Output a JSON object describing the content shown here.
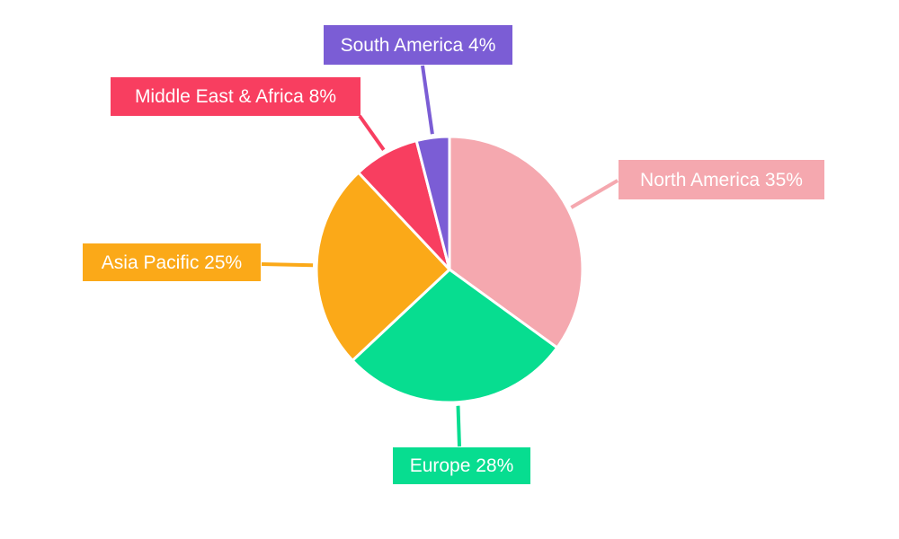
{
  "chart_data": {
    "type": "pie",
    "title": "",
    "background_color": "#ffffff",
    "start_angle": "12 o'clock",
    "direction": "clockwise",
    "legend_position": "none",
    "label_style": "external callout boxes with leader lines",
    "label_text_color": "#ffffff",
    "slice_gap_color": "#ffffff",
    "slices": [
      {
        "label": "North America",
        "value": 35,
        "unit": "%",
        "color": "#F5A8AF",
        "label_text": "North America 35%"
      },
      {
        "label": "Europe",
        "value": 28,
        "unit": "%",
        "color": "#07DD90",
        "label_text": "Europe 28%"
      },
      {
        "label": "Asia Pacific",
        "value": 25,
        "unit": "%",
        "color": "#FBA918",
        "label_text": "Asia Pacific 25%"
      },
      {
        "label": "Middle East & Africa",
        "value": 8,
        "unit": "%",
        "color": "#F83E60",
        "label_text": "Middle East & Africa 8%"
      },
      {
        "label": "South America",
        "value": 4,
        "unit": "%",
        "color": "#7B5DD5",
        "label_text": "South America 4%"
      }
    ]
  }
}
